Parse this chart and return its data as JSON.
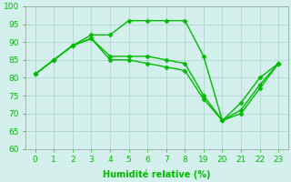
{
  "xlabel": "Humidité relative (%)",
  "background_color": "#d4f0ec",
  "grid_color": "#b0d8d0",
  "line_color": "#00bb00",
  "ylim": [
    60,
    100
  ],
  "yticks": [
    60,
    65,
    70,
    75,
    80,
    85,
    90,
    95,
    100
  ],
  "x_positions": [
    0,
    1,
    2,
    3,
    4,
    5,
    6,
    7,
    8,
    9,
    10,
    11,
    12,
    13
  ],
  "x_tick_labels": [
    "0",
    "1",
    "2",
    "3",
    "4",
    "5",
    "6",
    "7",
    "8",
    "19",
    "20",
    "21",
    "22",
    "23"
  ],
  "xlim": [
    -0.5,
    13.5
  ],
  "series": [
    {
      "x": [
        0,
        1,
        2,
        3,
        4,
        5,
        6,
        7,
        8,
        9,
        10,
        11,
        12,
        13
      ],
      "y": [
        81,
        85,
        89,
        92,
        92,
        96,
        96,
        96,
        96,
        86,
        68,
        73,
        80,
        84
      ]
    },
    {
      "x": [
        0,
        1,
        2,
        3,
        4,
        5,
        6,
        7,
        8,
        9,
        10,
        11,
        12,
        13
      ],
      "y": [
        81,
        85,
        89,
        91,
        86,
        86,
        86,
        85,
        84,
        75,
        68,
        71,
        78,
        84
      ]
    },
    {
      "x": [
        0,
        1,
        2,
        3,
        4,
        5,
        6,
        7,
        8,
        9,
        10,
        11,
        12,
        13
      ],
      "y": [
        81,
        85,
        89,
        91,
        85,
        85,
        84,
        83,
        82,
        74,
        68,
        70,
        77,
        84
      ]
    }
  ],
  "marker_style": "D",
  "marker_size": 2.5,
  "line_width": 1.0,
  "xlabel_fontsize": 7,
  "tick_fontsize": 6.5
}
